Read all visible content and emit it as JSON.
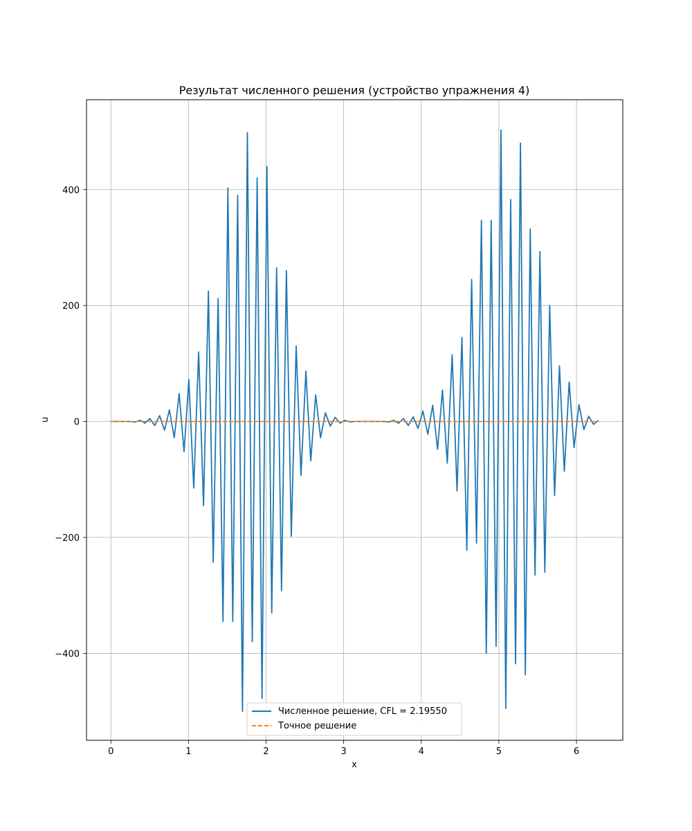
{
  "chart_data": {
    "type": "line",
    "title": "Результат численного решения (устройство упражнения 4)",
    "xlabel": "x",
    "ylabel": "u",
    "xlim": [
      -0.314,
      6.597
    ],
    "ylim": [
      -550,
      555
    ],
    "xticks": [
      "0",
      "1",
      "2",
      "3",
      "4",
      "5",
      "6"
    ],
    "yticks": [
      "−400",
      "−200",
      "0",
      "200",
      "400"
    ],
    "grid": true,
    "legend_position": "bottom-center",
    "series": [
      {
        "name": "Численное решение, CFL = 2.19550",
        "color": "#1f77b4",
        "style": "solid",
        "points": [
          [
            0.0,
            0
          ],
          [
            0.063,
            0
          ],
          [
            0.126,
            0
          ],
          [
            0.189,
            0
          ],
          [
            0.251,
            0
          ],
          [
            0.314,
            -1
          ],
          [
            0.377,
            2
          ],
          [
            0.44,
            -3
          ],
          [
            0.503,
            5
          ],
          [
            0.566,
            -7
          ],
          [
            0.628,
            10
          ],
          [
            0.691,
            -15
          ],
          [
            0.754,
            20
          ],
          [
            0.817,
            -28
          ],
          [
            0.88,
            48
          ],
          [
            0.943,
            -52
          ],
          [
            1.005,
            72
          ],
          [
            1.068,
            -115
          ],
          [
            1.131,
            120
          ],
          [
            1.194,
            -145
          ],
          [
            1.257,
            225
          ],
          [
            1.319,
            -243
          ],
          [
            1.382,
            212
          ],
          [
            1.445,
            -345
          ],
          [
            1.508,
            403
          ],
          [
            1.571,
            -345
          ],
          [
            1.634,
            390
          ],
          [
            1.696,
            -500
          ],
          [
            1.759,
            498
          ],
          [
            1.822,
            -380
          ],
          [
            1.885,
            420
          ],
          [
            1.948,
            -478
          ],
          [
            2.011,
            440
          ],
          [
            2.073,
            -330
          ],
          [
            2.136,
            265
          ],
          [
            2.199,
            -292
          ],
          [
            2.262,
            260
          ],
          [
            2.325,
            -198
          ],
          [
            2.388,
            130
          ],
          [
            2.45,
            -93
          ],
          [
            2.513,
            87
          ],
          [
            2.576,
            -68
          ],
          [
            2.639,
            46
          ],
          [
            2.702,
            -28
          ],
          [
            2.765,
            15
          ],
          [
            2.827,
            -8
          ],
          [
            2.89,
            7
          ],
          [
            2.953,
            -3
          ],
          [
            3.016,
            2
          ],
          [
            3.079,
            -1
          ],
          [
            3.142,
            0
          ],
          [
            3.204,
            0
          ],
          [
            3.267,
            0
          ],
          [
            3.33,
            0
          ],
          [
            3.393,
            0
          ],
          [
            3.456,
            0
          ],
          [
            3.519,
            0
          ],
          [
            3.581,
            -1
          ],
          [
            3.644,
            2
          ],
          [
            3.707,
            -3
          ],
          [
            3.77,
            5
          ],
          [
            3.833,
            -7
          ],
          [
            3.896,
            8
          ],
          [
            3.958,
            -12
          ],
          [
            4.021,
            18
          ],
          [
            4.084,
            -22
          ],
          [
            4.147,
            28
          ],
          [
            4.21,
            -48
          ],
          [
            4.273,
            54
          ],
          [
            4.335,
            -72
          ],
          [
            4.398,
            115
          ],
          [
            4.461,
            -120
          ],
          [
            4.524,
            145
          ],
          [
            4.587,
            -222
          ],
          [
            4.649,
            245
          ],
          [
            4.712,
            -210
          ],
          [
            4.775,
            347
          ],
          [
            4.838,
            -400
          ],
          [
            4.901,
            347
          ],
          [
            4.964,
            -388
          ],
          [
            5.027,
            503
          ],
          [
            5.089,
            -495
          ],
          [
            5.152,
            383
          ],
          [
            5.215,
            -418
          ],
          [
            5.278,
            480
          ],
          [
            5.341,
            -437
          ],
          [
            5.404,
            332
          ],
          [
            5.466,
            -265
          ],
          [
            5.529,
            293
          ],
          [
            5.592,
            -260
          ],
          [
            5.655,
            200
          ],
          [
            5.718,
            -128
          ],
          [
            5.781,
            96
          ],
          [
            5.843,
            -86
          ],
          [
            5.906,
            68
          ],
          [
            5.969,
            -45
          ],
          [
            6.032,
            29
          ],
          [
            6.095,
            -14
          ],
          [
            6.158,
            9
          ],
          [
            6.22,
            -5
          ],
          [
            6.283,
            2
          ]
        ]
      },
      {
        "name": "Точное решение",
        "color": "#ff7f0e",
        "style": "dashed",
        "points": [
          [
            0.0,
            0
          ],
          [
            6.283,
            0
          ]
        ]
      }
    ]
  }
}
